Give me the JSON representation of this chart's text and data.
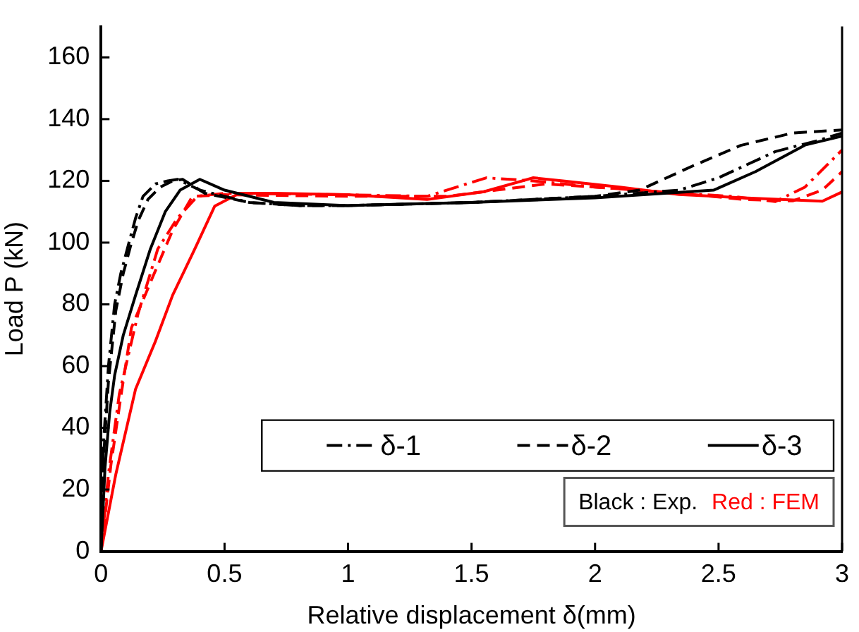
{
  "chart_data": {
    "type": "line",
    "xlabel": "Relative displacement δ(mm)",
    "ylabel": "Load P (kN)",
    "xlim": [
      0,
      3
    ],
    "xticks": [
      0,
      0.5,
      1,
      1.5,
      2,
      2.5,
      3
    ],
    "ylim": [
      0,
      170
    ],
    "yticks": [
      0,
      20,
      40,
      60,
      80,
      100,
      120,
      140,
      160
    ],
    "grid": false,
    "legend": "bottom right",
    "marker": "none",
    "annotations": [
      "Black : Exp.",
      "Red : FEM"
    ],
    "series": [
      {
        "name": "δ-1",
        "color": "#000000",
        "line_style": "dashdot",
        "x": [
          0,
          0.01,
          0.03,
          0.055,
          0.08,
          0.113,
          0.14,
          0.17,
          0.22,
          0.27,
          0.31,
          0.4,
          0.6,
          0.8,
          1,
          1.5,
          2,
          2.34,
          2.5,
          2.73,
          2.9,
          3
        ],
        "values": [
          0,
          35,
          60,
          80,
          90,
          100,
          108,
          115,
          119,
          120,
          120.5,
          117,
          113,
          112,
          112,
          113,
          115,
          117,
          121,
          129.5,
          133,
          135.5
        ]
      },
      {
        "name": "δ-2",
        "color": "#000000",
        "line_style": "dashed",
        "x": [
          0,
          0.01,
          0.03,
          0.06,
          0.09,
          0.12,
          0.15,
          0.19,
          0.24,
          0.29,
          0.33,
          0.42,
          0.6,
          0.8,
          1,
          1.5,
          2,
          2.18,
          2.4,
          2.59,
          2.8,
          3
        ],
        "values": [
          0,
          30,
          55,
          78,
          90,
          99,
          107,
          114,
          118,
          120,
          120.5,
          116,
          113,
          112,
          112,
          113,
          115,
          117,
          125,
          131.5,
          135.5,
          136.5
        ]
      },
      {
        "name": "δ-3",
        "color": "#000000",
        "line_style": "solid",
        "x": [
          0,
          0.016,
          0.035,
          0.055,
          0.09,
          0.14,
          0.2,
          0.26,
          0.32,
          0.4,
          0.5,
          0.7,
          1,
          1.5,
          2,
          2.48,
          2.65,
          2.85,
          3
        ],
        "values": [
          0,
          27,
          45,
          57,
          70,
          83,
          98,
          110,
          117,
          120.5,
          117,
          113,
          112,
          113,
          114.5,
          117,
          123,
          131.6,
          134.5
        ]
      },
      {
        "color": "#ff0000",
        "line_style": "dashdot",
        "x": [
          0,
          0.03,
          0.074,
          0.15,
          0.23,
          0.31,
          0.39,
          0.5,
          1,
          1.32,
          1.56,
          1.75,
          2,
          2.34,
          2.55,
          2.73,
          2.85,
          3
        ],
        "values": [
          0,
          25,
          51,
          77,
          98,
          108,
          115,
          116,
          115.5,
          115,
          121,
          120,
          118,
          116,
          115,
          113.3,
          118,
          130
        ]
      },
      {
        "color": "#ff0000",
        "line_style": "dashed",
        "x": [
          0,
          0.04,
          0.08,
          0.123,
          0.21,
          0.29,
          0.37,
          0.5,
          1,
          1.4,
          1.6,
          1.8,
          2,
          2.34,
          2.6,
          2.8,
          2.92,
          3
        ],
        "values": [
          0,
          28,
          50,
          72.4,
          89,
          104,
          115,
          115.5,
          115,
          115,
          117,
          119,
          118,
          116,
          114,
          113.5,
          117,
          123
        ]
      },
      {
        "color": "#ff0000",
        "line_style": "solid",
        "x": [
          0,
          0.06,
          0.14,
          0.22,
          0.29,
          0.38,
          0.46,
          0.56,
          0.7,
          1,
          1.32,
          1.55,
          1.75,
          1.87,
          2.1,
          2.34,
          2.6,
          2.92,
          3
        ],
        "values": [
          0,
          25,
          52.6,
          68,
          83,
          98,
          111.8,
          116,
          116,
          115.5,
          114,
          116.5,
          121,
          120,
          118,
          115.6,
          114.5,
          113.4,
          116.4
        ]
      }
    ]
  }
}
